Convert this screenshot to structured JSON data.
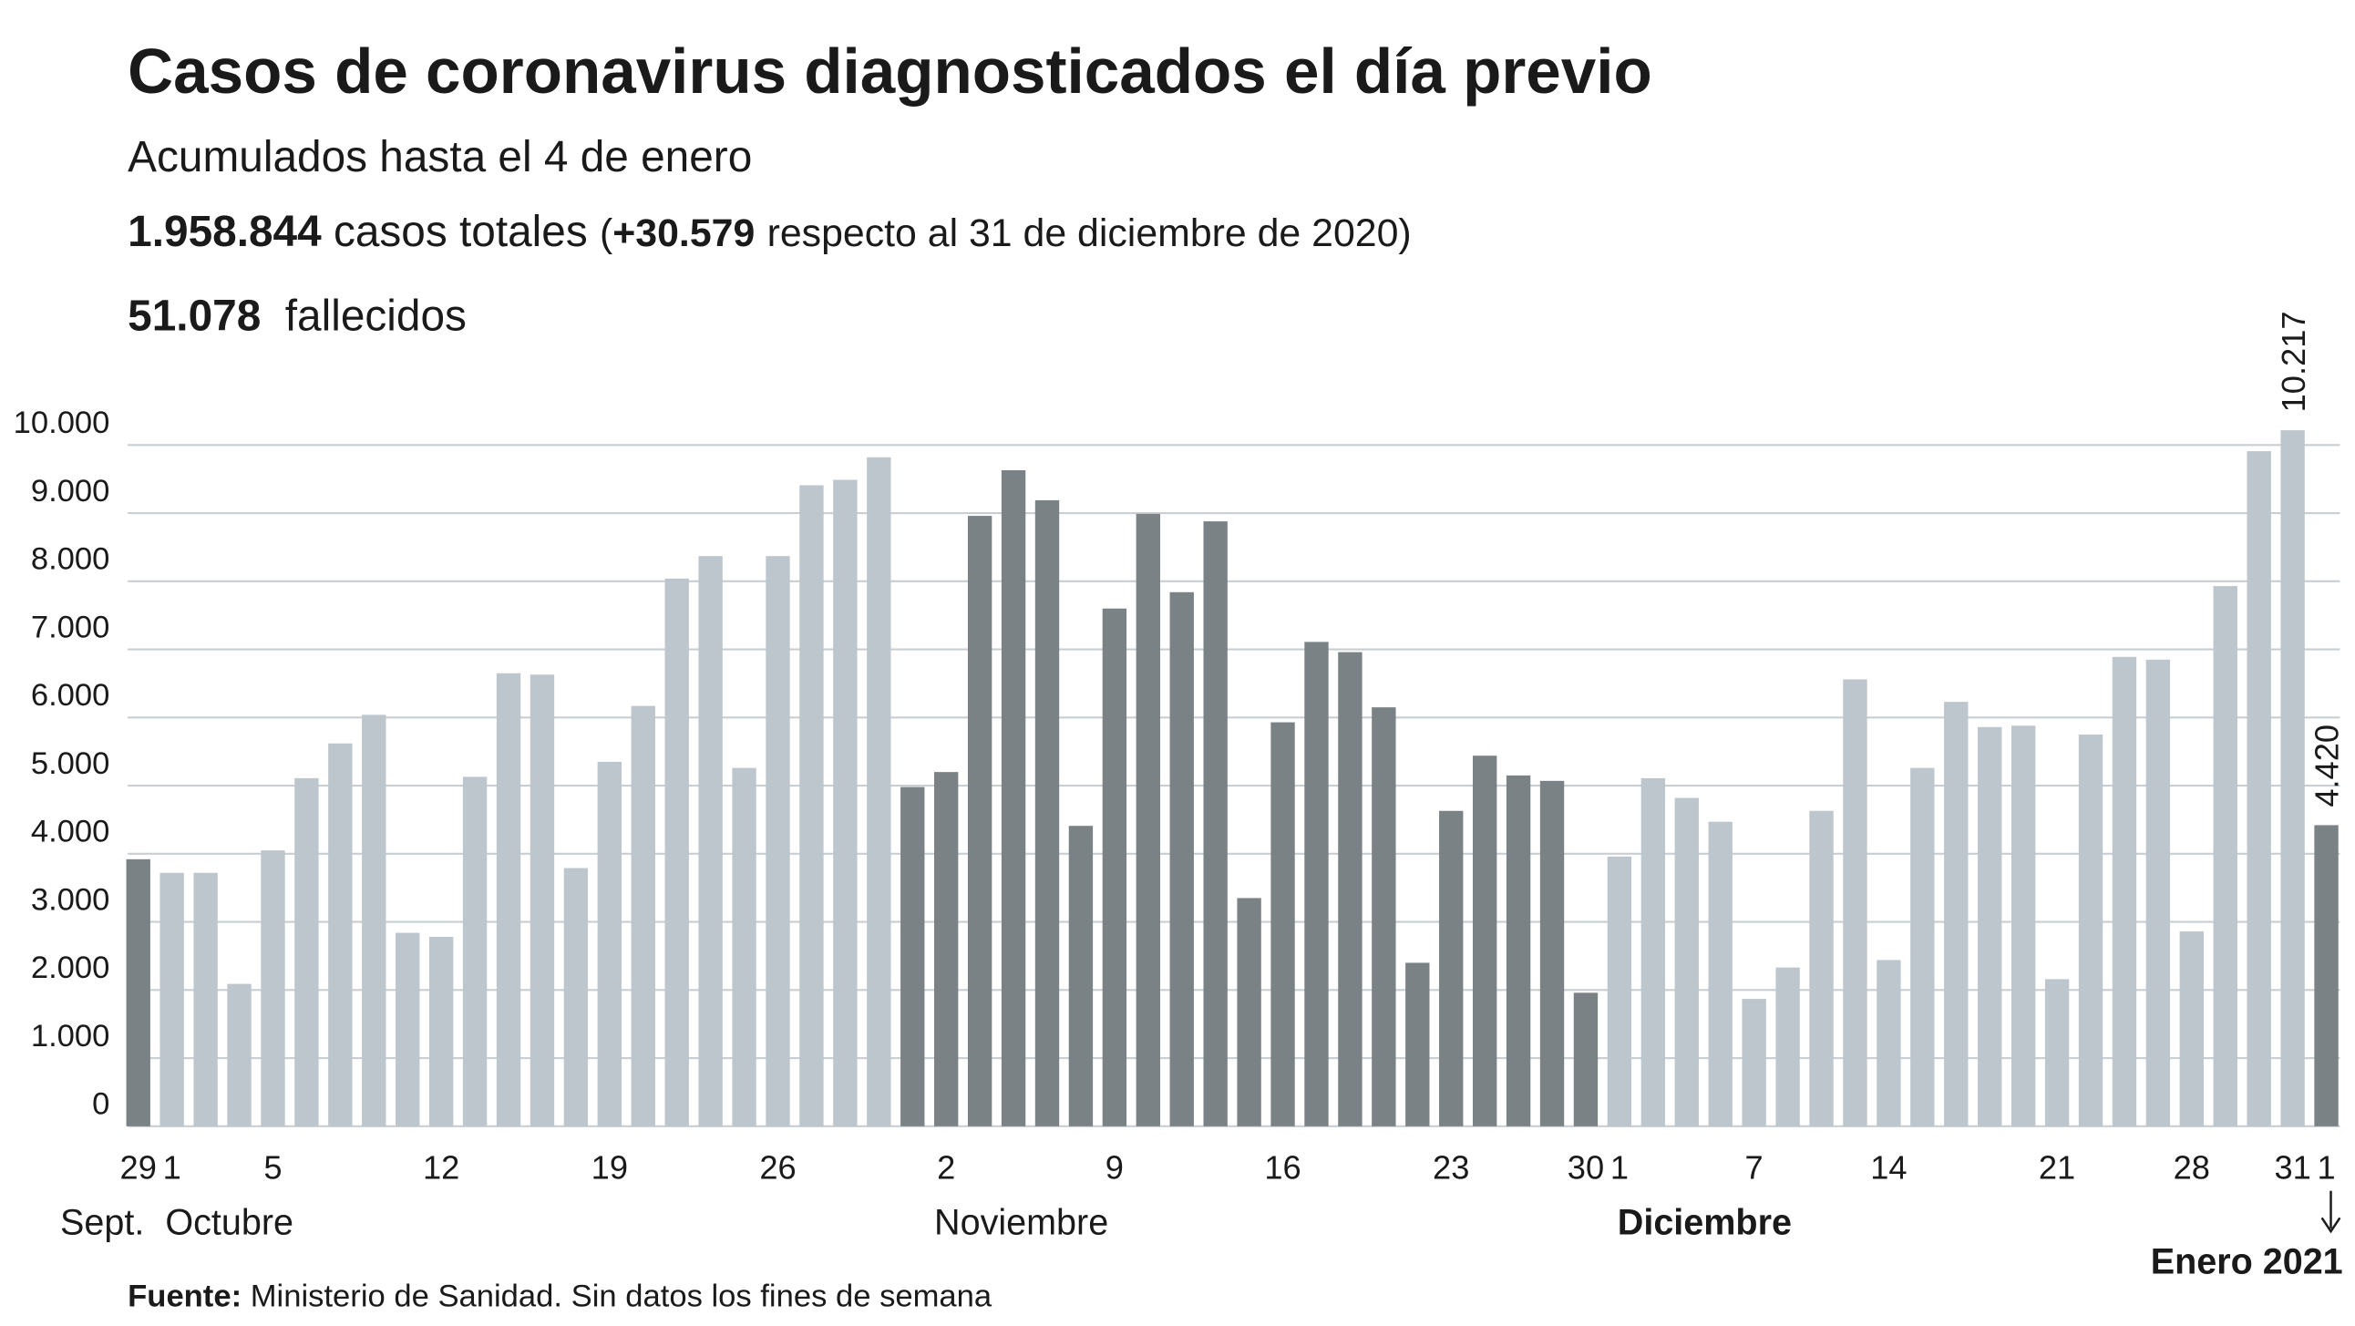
{
  "chart_data": {
    "type": "bar",
    "title": "Casos de coronavirus diagnosticados el día previo",
    "subtitle": "Acumulados hasta el 4 de enero",
    "total_cases": "1.958.844",
    "total_cases_text": "casos totales",
    "open_paren": "(",
    "change": "+30.579",
    "change_text": "respecto al 31 de diciembre de 2020)",
    "deaths": "51.078",
    "deaths_text": "fallecidos",
    "source_label": "Fuente:",
    "source": "Ministerio de Sanidad. Sin datos los fines de semana",
    "months": [
      "Sept.",
      "Octubre",
      "Noviembre",
      "Diciembre",
      "Enero 2021"
    ],
    "categories": [
      "29",
      "1",
      null,
      null,
      "5",
      null,
      null,
      null,
      null,
      "12",
      null,
      null,
      null,
      null,
      "19",
      null,
      null,
      null,
      null,
      "26",
      null,
      null,
      null,
      null,
      "2",
      null,
      null,
      null,
      null,
      "9",
      null,
      null,
      null,
      null,
      "16",
      null,
      null,
      null,
      null,
      "23",
      null,
      null,
      null,
      "30",
      "1",
      null,
      null,
      null,
      "7",
      null,
      null,
      null,
      "14",
      null,
      null,
      null,
      null,
      "21",
      null,
      null,
      null,
      "28",
      null,
      null,
      "31",
      "1"
    ],
    "values": [
      3920,
      3720,
      3720,
      2090,
      4050,
      5110,
      5620,
      6040,
      2840,
      2780,
      5130,
      6650,
      6630,
      3790,
      5350,
      6170,
      8040,
      8370,
      5260,
      8370,
      9410,
      9490,
      9820,
      4980,
      5200,
      8960,
      9630,
      9190,
      4410,
      7600,
      8990,
      7840,
      8880,
      3350,
      5930,
      7110,
      6960,
      6150,
      2400,
      4630,
      5440,
      5150,
      5070,
      1960,
      3960,
      5110,
      4820,
      4470,
      1870,
      2330,
      4630,
      6560,
      2440,
      5260,
      6230,
      5860,
      5880,
      2160,
      5750,
      6890,
      6850,
      2860,
      7930,
      9910,
      10217,
      4420
    ],
    "value_labels": [
      null,
      null,
      null,
      null,
      null,
      null,
      null,
      null,
      null,
      null,
      null,
      null,
      null,
      null,
      null,
      null,
      null,
      null,
      null,
      null,
      null,
      null,
      null,
      null,
      null,
      null,
      null,
      null,
      null,
      null,
      null,
      null,
      null,
      null,
      null,
      null,
      null,
      null,
      null,
      null,
      null,
      null,
      null,
      null,
      null,
      null,
      null,
      null,
      null,
      null,
      null,
      null,
      null,
      null,
      null,
      null,
      null,
      null,
      null,
      null,
      null,
      null,
      null,
      null,
      "10.217",
      "4.420"
    ],
    "colors": [
      "#7b8286",
      "#bcc6cc",
      "#bcc6cc",
      "#bcc6cc",
      "#bcc6cc",
      "#bcc6cc",
      "#bcc6cc",
      "#bcc6cc",
      "#bcc6cc",
      "#bcc6cc",
      "#bcc6cc",
      "#bcc6cc",
      "#bcc6cc",
      "#bcc6cc",
      "#bcc6cc",
      "#bcc6cc",
      "#bcc6cc",
      "#bcc6cc",
      "#bcc6cc",
      "#bcc6cc",
      "#bcc6cc",
      "#bcc6cc",
      "#bcc6cc",
      "#7b8286",
      "#7b8286",
      "#7b8286",
      "#7b8286",
      "#7b8286",
      "#7b8286",
      "#7b8286",
      "#7b8286",
      "#7b8286",
      "#7b8286",
      "#7b8286",
      "#7b8286",
      "#7b8286",
      "#7b8286",
      "#7b8286",
      "#7b8286",
      "#7b8286",
      "#7b8286",
      "#7b8286",
      "#7b8286",
      "#7b8286",
      "#bcc6cc",
      "#bcc6cc",
      "#bcc6cc",
      "#bcc6cc",
      "#bcc6cc",
      "#bcc6cc",
      "#bcc6cc",
      "#bcc6cc",
      "#bcc6cc",
      "#bcc6cc",
      "#bcc6cc",
      "#bcc6cc",
      "#bcc6cc",
      "#bcc6cc",
      "#bcc6cc",
      "#bcc6cc",
      "#bcc6cc",
      "#bcc6cc",
      "#bcc6cc",
      "#bcc6cc",
      "#bcc6cc",
      "#7b8286"
    ],
    "ylim": [
      0,
      11000
    ],
    "yticks": [
      0,
      {
        "value": 1000,
        "label": "1.000"
      },
      {
        "value": 2000,
        "label": "2.000"
      },
      {
        "value": 3000,
        "label": "3.000"
      },
      {
        "value": 4000,
        "label": "4.000"
      },
      {
        "value": 5000,
        "label": "5.000"
      },
      {
        "value": 6000,
        "label": "6.000"
      },
      {
        "value": 7000,
        "label": "7.000"
      },
      {
        "value": 8000,
        "label": "8.000"
      },
      {
        "value": 9000,
        "label": "9.000"
      },
      {
        "value": 10000,
        "label": "10.000"
      }
    ],
    "grid": true
  }
}
